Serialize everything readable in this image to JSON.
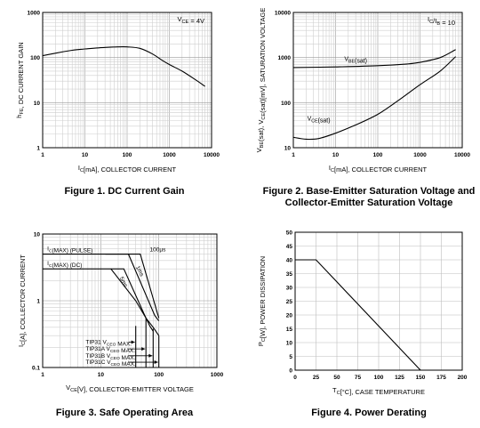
{
  "chart_data": [
    {
      "id": "fig1",
      "type": "line",
      "title": "Figure 1. DC Current Gain",
      "xlabel": "I_C[mA], COLLECTOR CURRENT",
      "ylabel": "h_FE, DC CURRENT GAIN",
      "xscale": "log",
      "yscale": "log",
      "xlim": [
        1,
        10000
      ],
      "ylim": [
        1,
        1000
      ],
      "xticks": [
        "1",
        "10",
        "100",
        "1000",
        "10000"
      ],
      "yticks": [
        "1",
        "10",
        "100",
        "1000"
      ],
      "grid": true,
      "annotations": [
        {
          "text": "V_CE = 4V"
        }
      ],
      "series": [
        {
          "name": "",
          "points": [
            [
              1,
              110
            ],
            [
              2,
              125
            ],
            [
              5,
              145
            ],
            [
              10,
              155
            ],
            [
              30,
              168
            ],
            [
              60,
              172
            ],
            [
              100,
              172
            ],
            [
              200,
              160
            ],
            [
              400,
              120
            ],
            [
              700,
              85
            ],
            [
              1000,
              70
            ],
            [
              2000,
              50
            ],
            [
              4000,
              33
            ],
            [
              7000,
              23
            ]
          ]
        }
      ]
    },
    {
      "id": "fig2",
      "type": "line",
      "title": "Figure 2. Base-Emitter Saturation Voltage and Collector-Emitter Saturation Voltage",
      "xlabel": "I_C[mA], COLLECTOR CURRENT",
      "ylabel": "V_BE(sat), V_CE(sat)[mV], SATURATION VOLTAGE",
      "xscale": "log",
      "yscale": "log",
      "xlim": [
        1,
        10000
      ],
      "ylim": [
        10,
        10000
      ],
      "xticks": [
        "1",
        "10",
        "100",
        "1000",
        "10000"
      ],
      "yticks": [
        "10",
        "100",
        "1000",
        "10000"
      ],
      "grid": true,
      "annotations": [
        {
          "text": "I_C/I_B = 10"
        }
      ],
      "series": [
        {
          "name": "V_BE(sat)",
          "points": [
            [
              1,
              600
            ],
            [
              10,
              620
            ],
            [
              100,
              660
            ],
            [
              500,
              720
            ],
            [
              1000,
              780
            ],
            [
              3000,
              1000
            ],
            [
              7000,
              1500
            ]
          ]
        },
        {
          "name": "V_CE(sat)",
          "points": [
            [
              1,
              17
            ],
            [
              2,
              15.5
            ],
            [
              4,
              16
            ],
            [
              10,
              21
            ],
            [
              30,
              32
            ],
            [
              100,
              55
            ],
            [
              300,
              110
            ],
            [
              1000,
              250
            ],
            [
              3000,
              500
            ],
            [
              7000,
              1050
            ]
          ]
        }
      ]
    },
    {
      "id": "fig3",
      "type": "line",
      "title": "Figure 3. Safe Operating Area",
      "xlabel": "V_CE[V], COLLECTOR-EMITTER VOLTAGE",
      "ylabel": "I_C[A], COLLECTOR CURRENT",
      "xscale": "log",
      "yscale": "log",
      "xlim": [
        1,
        1000
      ],
      "ylim": [
        0.1,
        10
      ],
      "xticks": [
        "1",
        "10",
        "100",
        "1000"
      ],
      "yticks": [
        "0.1",
        "1",
        "10"
      ],
      "grid": true,
      "annotations": [
        {
          "text": "I_C(MAX) (PULSE)"
        },
        {
          "text": "I_C(MAX) (DC)"
        },
        {
          "text": "100µs"
        },
        {
          "text": "1ms"
        },
        {
          "text": "5ms"
        },
        {
          "text": "TIP31 V_CEO MAX."
        },
        {
          "text": "TIP31A V_CEO MAX."
        },
        {
          "text": "TIP31B V_CEO MAX."
        },
        {
          "text": "TIP31C V_CEO MAX."
        }
      ],
      "series": [
        {
          "name": "I_C(MAX) (PULSE)",
          "points": [
            [
              1,
              5
            ],
            [
              26,
              5
            ]
          ]
        },
        {
          "name": "100µs",
          "points": [
            [
              26,
              5
            ],
            [
              48,
              5
            ],
            [
              100,
              0.55
            ]
          ]
        },
        {
          "name": "1ms",
          "points": [
            [
              12,
              5
            ],
            [
              30,
              5
            ],
            [
              85,
              0.6
            ],
            [
              100,
              0.5
            ]
          ]
        },
        {
          "name": "I_C(MAX) (DC)",
          "points": [
            [
              1,
              3
            ],
            [
              12,
              3
            ]
          ]
        },
        {
          "name": "5ms",
          "points": [
            [
              12,
              3
            ],
            [
              25,
              3
            ],
            [
              55,
              0.65
            ],
            [
              70,
              0.42
            ],
            [
              80,
              0.35
            ]
          ]
        },
        {
          "name": "DC",
          "points": [
            [
              15,
              3
            ],
            [
              40,
              1.0
            ],
            [
              60,
              0.55
            ],
            [
              80,
              0.4
            ],
            [
              100,
              0.3
            ]
          ]
        },
        {
          "name": "TIP31 V_CEO MAX.",
          "points": [
            [
              40,
              0.42
            ],
            [
              40,
              0.1
            ]
          ]
        },
        {
          "name": "TIP31A V_CEO MAX.",
          "points": [
            [
              60,
              0.55
            ],
            [
              60,
              0.1
            ]
          ]
        },
        {
          "name": "TIP31B V_CEO MAX.",
          "points": [
            [
              80,
              0.38
            ],
            [
              80,
              0.1
            ]
          ]
        },
        {
          "name": "TIP31C V_CEO MAX.",
          "points": [
            [
              100,
              0.3
            ],
            [
              100,
              0.1
            ]
          ]
        }
      ]
    },
    {
      "id": "fig4",
      "type": "line",
      "title": "Figure 4. Power Derating",
      "xlabel": "T_C[°C], CASE TEMPERATURE",
      "ylabel": "P_C[W], POWER DISSIPATION",
      "xscale": "linear",
      "yscale": "linear",
      "xlim": [
        0,
        200
      ],
      "ylim": [
        0,
        50
      ],
      "xticks": [
        "0",
        "25",
        "50",
        "75",
        "100",
        "125",
        "150",
        "175",
        "200"
      ],
      "yticks": [
        "0",
        "5",
        "10",
        "15",
        "20",
        "25",
        "30",
        "35",
        "40",
        "45",
        "50"
      ],
      "grid": true,
      "series": [
        {
          "name": "",
          "points": [
            [
              0,
              40
            ],
            [
              25,
              40
            ],
            [
              150,
              0
            ]
          ]
        }
      ]
    }
  ]
}
